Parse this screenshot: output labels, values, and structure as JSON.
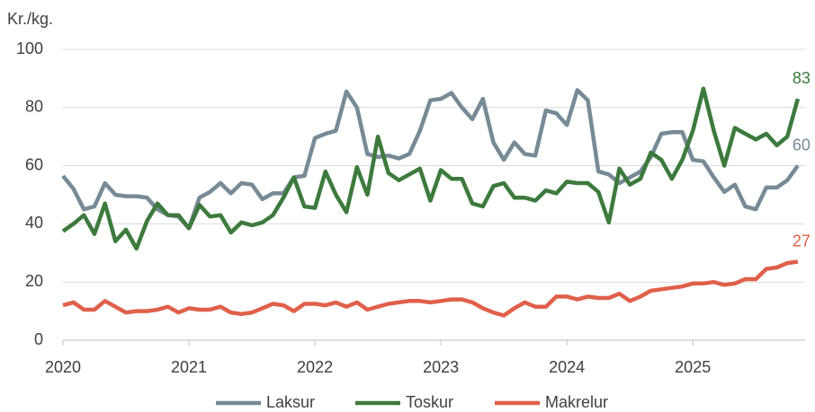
{
  "chart_data": {
    "type": "line",
    "ylabel": "Kr./kg.",
    "categories": [
      "2020",
      null,
      null,
      null,
      null,
      null,
      null,
      null,
      null,
      null,
      null,
      null,
      "2021",
      null,
      null,
      null,
      null,
      null,
      null,
      null,
      null,
      null,
      null,
      null,
      "2022",
      null,
      null,
      null,
      null,
      null,
      null,
      null,
      null,
      null,
      null,
      null,
      "2023",
      null,
      null,
      null,
      null,
      null,
      null,
      null,
      null,
      null,
      null,
      null,
      "2024",
      null,
      null,
      null,
      null,
      null,
      null,
      null,
      null,
      null,
      null,
      null,
      "2025",
      null,
      null,
      null,
      null,
      null,
      null,
      null,
      null,
      null,
      null
    ],
    "series": [
      {
        "name": "Laksur",
        "color": "#778a96",
        "values": [
          56.5,
          52,
          45,
          46,
          54,
          50,
          49.5,
          49.5,
          49,
          45,
          43,
          42.5,
          38.5,
          49,
          51,
          54,
          50.5,
          54,
          53.5,
          48.5,
          50.5,
          50.5,
          56,
          56.5,
          69.5,
          71,
          72,
          85.5,
          80,
          64,
          63,
          63.5,
          62.5,
          64,
          72,
          82.5,
          83,
          85,
          80,
          76,
          83,
          68,
          62,
          68,
          64,
          63.5,
          79,
          78,
          74,
          86,
          82.5,
          58,
          57,
          54,
          56,
          58,
          63,
          71,
          71.5,
          71.5,
          62,
          61.5,
          56,
          51,
          53.5,
          46,
          45,
          52.5,
          52.5,
          55,
          60
        ]
      },
      {
        "name": "Toskur",
        "color": "#3d7a3d",
        "values": [
          37.5,
          40,
          43,
          36.5,
          47,
          34,
          38,
          31.5,
          41,
          47,
          43,
          43,
          38.5,
          46.5,
          42.5,
          43,
          37,
          40.5,
          39.5,
          40.5,
          43,
          49,
          56,
          46,
          45.5,
          58,
          50,
          44,
          59.5,
          50,
          70,
          57.5,
          55,
          57,
          59,
          48,
          58.5,
          55.5,
          55.5,
          47,
          46,
          53,
          54,
          49,
          49,
          48,
          51.5,
          50.5,
          54.5,
          54,
          54,
          51,
          40.5,
          59,
          53.5,
          55.5,
          64.5,
          62,
          55.5,
          62,
          72,
          86.5,
          72,
          60,
          73,
          71,
          69,
          71,
          67,
          70,
          83
        ]
      },
      {
        "name": "Makrelur",
        "color": "#e0604a",
        "values": [
          12,
          13,
          10.5,
          10.5,
          13.5,
          11.5,
          9.5,
          10,
          10,
          10.5,
          11.5,
          9.5,
          11,
          10.5,
          10.5,
          11.5,
          9.5,
          9,
          9.5,
          11,
          12.5,
          12,
          10,
          12.5,
          12.5,
          12,
          13,
          11.5,
          13,
          10.5,
          11.5,
          12.5,
          13,
          13.5,
          13.5,
          13,
          13.5,
          14,
          14,
          13,
          11,
          9.5,
          8.5,
          11,
          13,
          11.5,
          11.5,
          15,
          15,
          14,
          15,
          14.5,
          14.5,
          16,
          13.5,
          15,
          17,
          17.5,
          18,
          18.5,
          19.5,
          19.5,
          20,
          19,
          19.5,
          21,
          21,
          24.5,
          25,
          26.5,
          27
        ]
      }
    ],
    "ylim": [
      0,
      100
    ],
    "yticks": [
      0,
      20,
      40,
      60,
      80,
      100
    ],
    "grid": true,
    "legend": "bottom"
  }
}
